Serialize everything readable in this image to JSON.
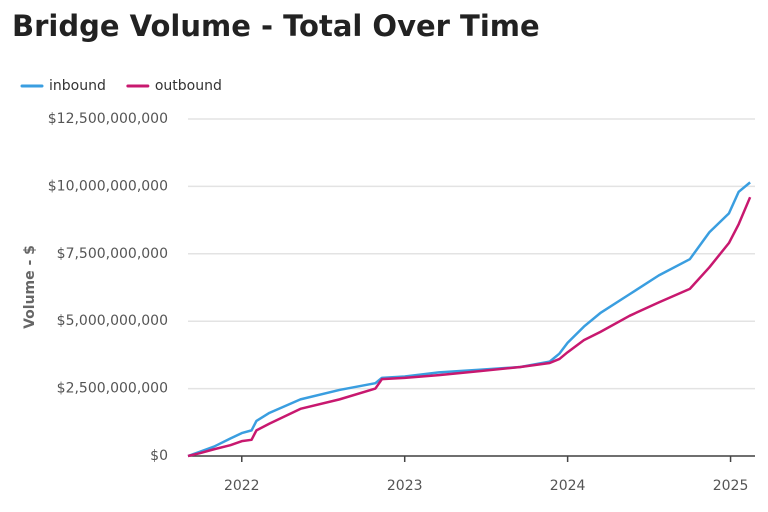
{
  "chart_data": {
    "type": "line",
    "title": "Bridge Volume - Total Over Time",
    "y_label": "Volume - $",
    "x": [
      2021.67,
      2021.74,
      2021.83,
      2021.93,
      2022.0,
      2022.06,
      2022.09,
      2022.17,
      2022.36,
      2022.6,
      2022.82,
      2022.86,
      2023.0,
      2023.21,
      2023.46,
      2023.71,
      2023.89,
      2023.95,
      2024.0,
      2024.1,
      2024.2,
      2024.38,
      2024.56,
      2024.75,
      2024.87,
      2024.99,
      2025.05,
      2025.12
    ],
    "series": [
      {
        "name": "inbound",
        "color": "#3a9ee0",
        "values": [
          0,
          150000000,
          350000000,
          650000000,
          850000000,
          950000000,
          1300000000,
          1600000000,
          2100000000,
          2450000000,
          2700000000,
          2900000000,
          2950000000,
          3100000000,
          3200000000,
          3300000000,
          3500000000,
          3800000000,
          4200000000,
          4800000000,
          5300000000,
          6000000000,
          6700000000,
          7300000000,
          8300000000,
          9000000000,
          9800000000,
          10150000000
        ]
      },
      {
        "name": "outbound",
        "color": "#c8186f",
        "values": [
          0,
          100000000,
          250000000,
          400000000,
          550000000,
          600000000,
          950000000,
          1200000000,
          1750000000,
          2100000000,
          2500000000,
          2850000000,
          2900000000,
          3000000000,
          3150000000,
          3300000000,
          3450000000,
          3600000000,
          3850000000,
          4300000000,
          4600000000,
          5200000000,
          5700000000,
          6200000000,
          7000000000,
          7900000000,
          8600000000,
          9600000000
        ]
      }
    ],
    "xlim": [
      2021.67,
      2025.15
    ],
    "xticks": [
      2022,
      2023,
      2024,
      2025
    ],
    "ylim": [
      0,
      12500000000
    ],
    "yticks": [
      {
        "value": 0,
        "label": "$0"
      },
      {
        "value": 2500000000,
        "label": "$2,500,000,000"
      },
      {
        "value": 5000000000,
        "label": "$5,000,000,000"
      },
      {
        "value": 7500000000,
        "label": "$7,500,000,000"
      },
      {
        "value": 10000000000,
        "label": "$10,000,000,000"
      },
      {
        "value": 12500000000,
        "label": "$12,500,000,000"
      }
    ],
    "grid": true,
    "legend": "top-left"
  }
}
